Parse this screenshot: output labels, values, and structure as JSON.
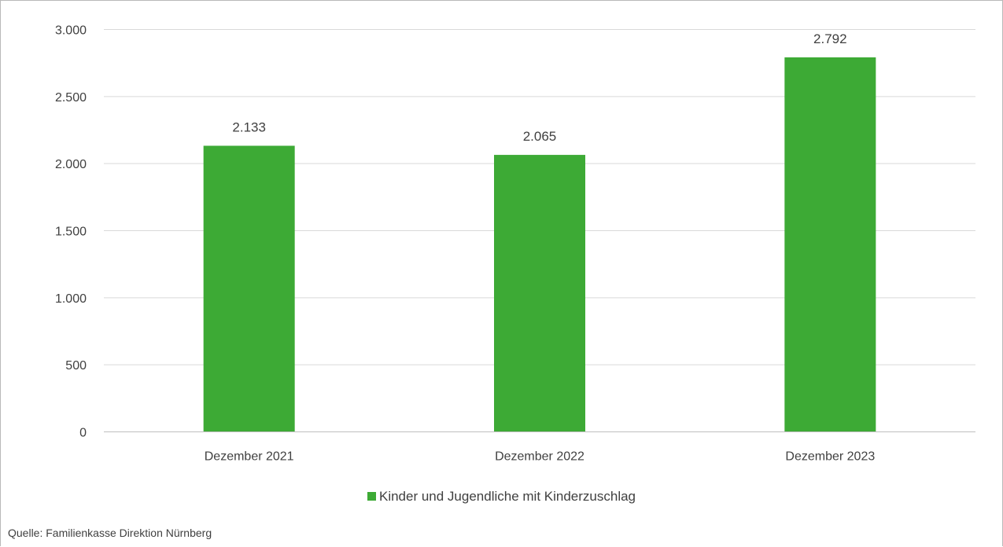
{
  "chart_data": {
    "type": "bar",
    "categories": [
      "Dezember 2021",
      "Dezember 2022",
      "Dezember 2023"
    ],
    "series": [
      {
        "name": "Kinder und Jugendliche mit Kinderzuschlag",
        "values": [
          2133,
          2065,
          2792
        ],
        "labels": [
          "2.133",
          "2.065",
          "2.792"
        ],
        "color": "#3daa35"
      }
    ],
    "y_ticks": [
      {
        "value": 0,
        "label": "0"
      },
      {
        "value": 500,
        "label": "500"
      },
      {
        "value": 1000,
        "label": "1.000"
      },
      {
        "value": 1500,
        "label": "1.500"
      },
      {
        "value": 2000,
        "label": "2.000"
      },
      {
        "value": 2500,
        "label": "2.500"
      },
      {
        "value": 3000,
        "label": "3.000"
      }
    ],
    "ylim": [
      0,
      3000
    ],
    "grid": true,
    "legend_position": "bottom",
    "gridline_color": "#d9d9d9",
    "axis_color": "#bfbfbf"
  },
  "source": "Quelle: Familienkasse Direktion Nürnberg"
}
